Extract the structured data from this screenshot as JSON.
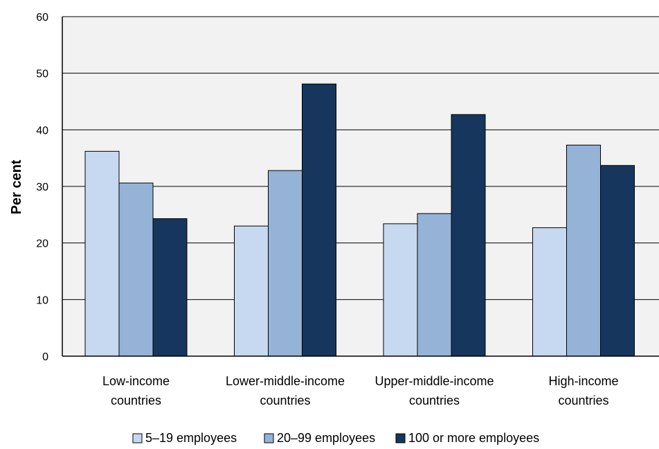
{
  "chart_data": {
    "type": "bar",
    "categories": [
      [
        "Low-income",
        "countries"
      ],
      [
        "Lower-middle-income",
        "countries"
      ],
      [
        "Upper-middle-income",
        "countries"
      ],
      [
        "High-income",
        "countries"
      ]
    ],
    "series": [
      {
        "name": "5–19 employees",
        "color": "#c6d9f1",
        "values": [
          36.2,
          23.0,
          23.4,
          22.7
        ]
      },
      {
        "name": "20–99 employees",
        "color": "#95b3d7",
        "values": [
          30.6,
          32.8,
          25.2,
          37.3
        ]
      },
      {
        "name": "100 or more employees",
        "color": "#17365d",
        "values": [
          24.3,
          48.1,
          42.7,
          33.7
        ]
      }
    ],
    "ylabel": "Per cent",
    "xlabel": "",
    "ylim": [
      0,
      60
    ],
    "yticks": [
      0,
      10,
      20,
      30,
      40,
      50,
      60
    ],
    "grid": true,
    "legend_position": "bottom",
    "plot_background": "#f2f2f2"
  }
}
